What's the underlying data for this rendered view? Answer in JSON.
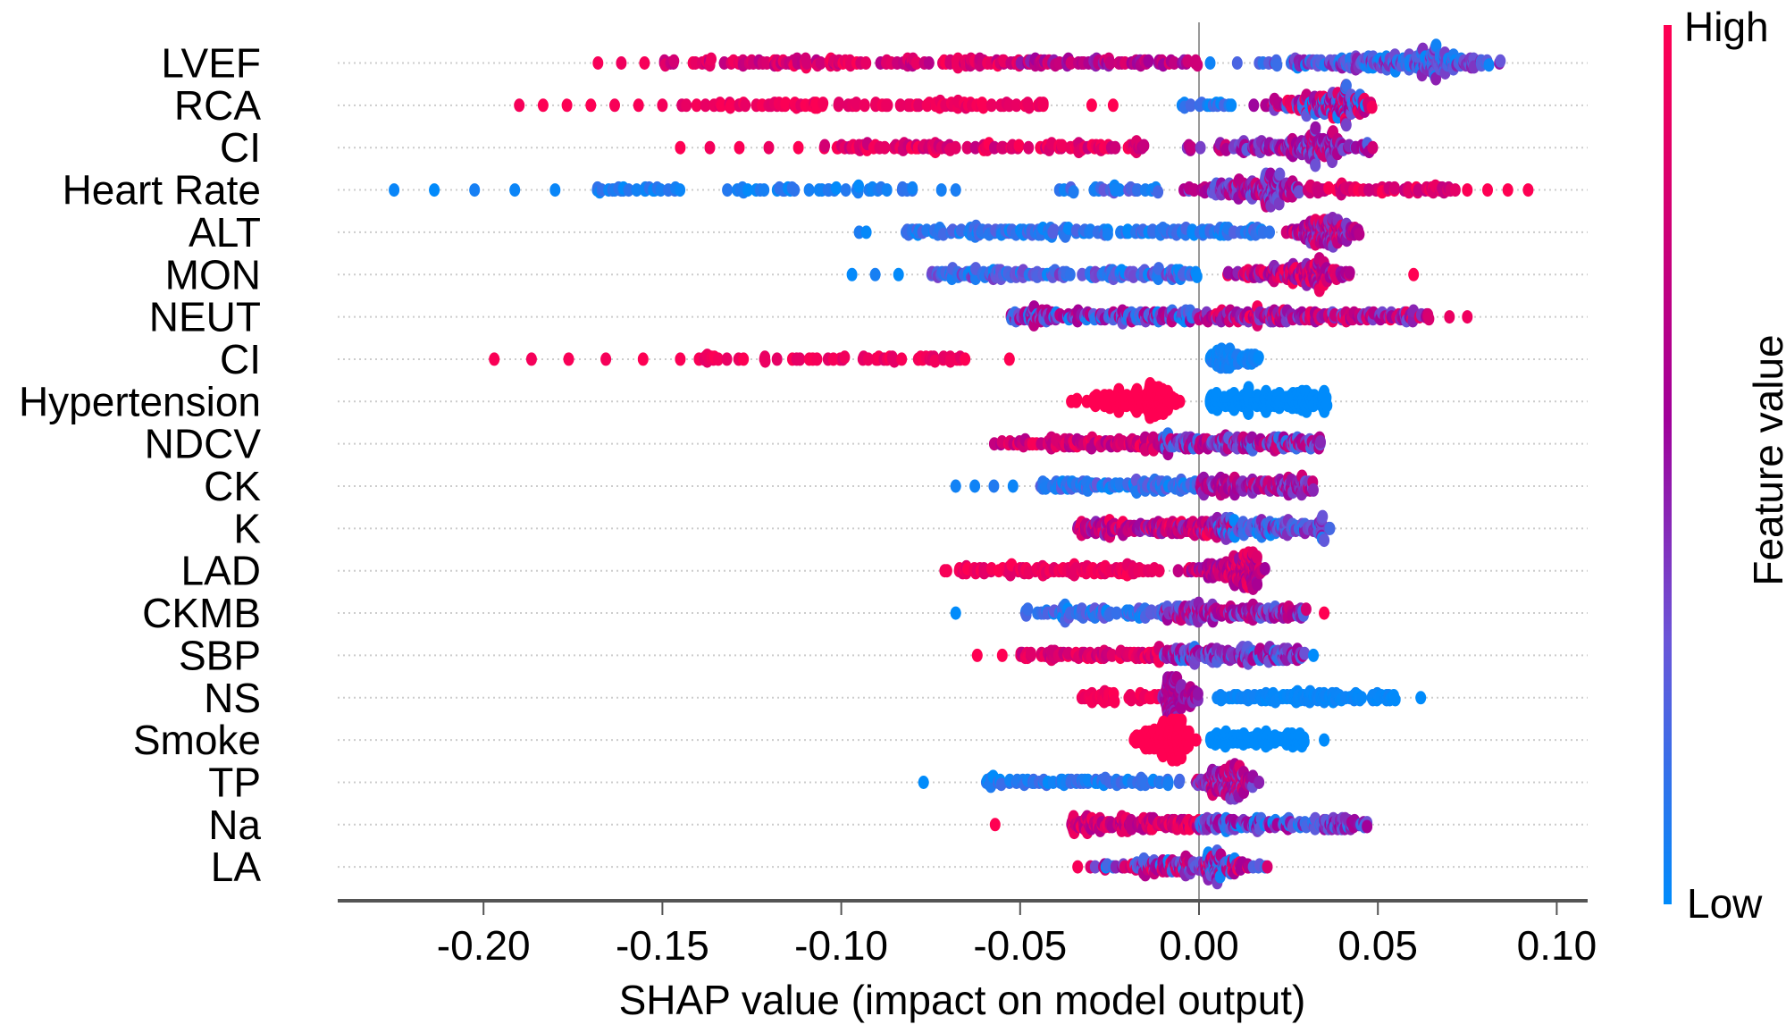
{
  "chart_data": {
    "type": "scatter",
    "subtype": "beeswarm",
    "xlabel": "SHAP value (impact on model output)",
    "xlim": [
      -0.24,
      0.107
    ],
    "xticks": [
      -0.2,
      -0.15,
      -0.1,
      -0.05,
      0.0,
      0.05,
      0.1
    ],
    "xtick_labels": [
      "-0.20",
      "-0.15",
      "-0.10",
      "-0.05",
      "0.00",
      "0.05",
      "0.10"
    ],
    "colorbar": {
      "label": "Feature value",
      "high_label": "High",
      "low_label": "Low",
      "low_color": "#008bfb",
      "mid_color": "#a0009a",
      "high_color": "#ff0052"
    },
    "grid": false,
    "features": [
      {
        "name": "LVEF",
        "segments": [
          {
            "x": [
              -0.168,
              -0.155
            ],
            "n": 3,
            "fv": [
              0.9,
              1
            ]
          },
          {
            "x": [
              -0.15,
              -0.05
            ],
            "n": 130,
            "fv": [
              0.65,
              1
            ]
          },
          {
            "x": [
              -0.05,
              0
            ],
            "n": 70,
            "fv": [
              0.45,
              0.85
            ]
          },
          {
            "x": [
              0,
              0.09
            ],
            "n": 240,
            "fv": [
              0,
              0.5
            ],
            "peak": 0.06
          }
        ]
      },
      {
        "name": "RCA",
        "segments": [
          {
            "x": [
              -0.19,
              -0.15
            ],
            "n": 7,
            "fv": [
              0.95,
              1
            ]
          },
          {
            "x": [
              -0.145,
              -0.043
            ],
            "n": 95,
            "fv": [
              0.85,
              1
            ]
          },
          {
            "x": [
              -0.03,
              -0.024
            ],
            "n": 2,
            "fv": [
              1,
              1
            ]
          },
          {
            "x": [
              -0.007,
              0.01
            ],
            "n": 15,
            "fv": [
              0,
              0.2
            ]
          },
          {
            "x": [
              0.01,
              0.053
            ],
            "n": 170,
            "fv": [
              0,
              1
            ],
            "peak": 0.038
          }
        ]
      },
      {
        "name": "CI",
        "segments": [
          {
            "x": [
              -0.145,
              -0.112
            ],
            "n": 5,
            "fv": [
              0.9,
              1
            ]
          },
          {
            "x": [
              -0.105,
              -0.015
            ],
            "n": 115,
            "fv": [
              0.7,
              1
            ]
          },
          {
            "x": [
              -0.015,
              0.053
            ],
            "n": 180,
            "fv": [
              0.2,
              0.8
            ],
            "peak": 0.03
          }
        ]
      },
      {
        "name": "Heart Rate",
        "segments": [
          {
            "x": [
              -0.225,
              -0.18
            ],
            "n": 5,
            "fv": [
              0,
              0.1
            ]
          },
          {
            "x": [
              -0.17,
              -0.145
            ],
            "n": 25,
            "fv": [
              0,
              0.15
            ]
          },
          {
            "x": [
              -0.132,
              -0.078
            ],
            "n": 40,
            "fv": [
              0,
              0.15
            ]
          },
          {
            "x": [
              -0.072,
              -0.068
            ],
            "n": 2,
            "fv": [
              0,
              0.1
            ]
          },
          {
            "x": [
              -0.042,
              -0.01
            ],
            "n": 25,
            "fv": [
              0,
              0.3
            ]
          },
          {
            "x": [
              -0.01,
              0.03
            ],
            "n": 160,
            "fv": [
              0.2,
              0.8
            ],
            "peak": 0.018
          },
          {
            "x": [
              0.03,
              0.072
            ],
            "n": 60,
            "fv": [
              0.7,
              1
            ]
          },
          {
            "x": [
              0.075,
              0.092
            ],
            "n": 4,
            "fv": [
              0.95,
              1
            ]
          }
        ]
      },
      {
        "name": "ALT",
        "segments": [
          {
            "x": [
              -0.095,
              -0.093
            ],
            "n": 2,
            "fv": [
              0,
              0.1
            ]
          },
          {
            "x": [
              -0.082,
              0.02
            ],
            "n": 170,
            "fv": [
              0,
              0.25
            ]
          },
          {
            "x": [
              0.02,
              0.05
            ],
            "n": 130,
            "fv": [
              0.3,
              0.9
            ],
            "peak": 0.035
          }
        ]
      },
      {
        "name": "MON",
        "segments": [
          {
            "x": [
              -0.097,
              -0.084
            ],
            "n": 3,
            "fv": [
              0,
              0.1
            ]
          },
          {
            "x": [
              -0.075,
              0
            ],
            "n": 150,
            "fv": [
              0,
              0.4
            ]
          },
          {
            "x": [
              0,
              0.045
            ],
            "n": 150,
            "fv": [
              0.4,
              1
            ],
            "peak": 0.03
          },
          {
            "x": [
              0.06,
              0.06
            ],
            "n": 1,
            "fv": [
              1,
              1
            ]
          }
        ]
      },
      {
        "name": "NEUT",
        "segments": [
          {
            "x": [
              -0.053,
              0
            ],
            "n": 160,
            "fv": [
              0,
              0.7
            ]
          },
          {
            "x": [
              0,
              0.065
            ],
            "n": 180,
            "fv": [
              0.3,
              1
            ]
          },
          {
            "x": [
              0.07,
              0.075
            ],
            "n": 2,
            "fv": [
              0.9,
              1
            ]
          }
        ]
      },
      {
        "name": "CI",
        "segments": [
          {
            "x": [
              -0.197,
              -0.145
            ],
            "n": 6,
            "fv": [
              0.95,
              1
            ]
          },
          {
            "x": [
              -0.14,
              -0.062
            ],
            "n": 60,
            "fv": [
              0.85,
              1
            ]
          },
          {
            "x": [
              -0.053,
              -0.053
            ],
            "n": 1,
            "fv": [
              1,
              1
            ]
          },
          {
            "x": [
              0.003,
              0.017
            ],
            "n": 70,
            "fv": [
              0,
              0.1
            ]
          }
        ]
      },
      {
        "name": "Hypertension",
        "segments": [
          {
            "x": [
              -0.042,
              -0.003
            ],
            "n": 160,
            "fv": [
              1,
              1
            ],
            "peak": -0.015
          },
          {
            "x": [
              0.003,
              0.036
            ],
            "n": 180,
            "fv": [
              0,
              0
            ]
          }
        ]
      },
      {
        "name": "NDCV",
        "segments": [
          {
            "x": [
              -0.058,
              -0.01
            ],
            "n": 100,
            "fv": [
              0.6,
              1
            ]
          },
          {
            "x": [
              -0.01,
              0.034
            ],
            "n": 170,
            "fv": [
              0.1,
              0.8
            ]
          }
        ]
      },
      {
        "name": "CK",
        "segments": [
          {
            "x": [
              -0.068,
              -0.052
            ],
            "n": 4,
            "fv": [
              0,
              0.1
            ]
          },
          {
            "x": [
              -0.045,
              0
            ],
            "n": 110,
            "fv": [
              0,
              0.3
            ]
          },
          {
            "x": [
              0,
              0.032
            ],
            "n": 140,
            "fv": [
              0.3,
              0.8
            ]
          }
        ]
      },
      {
        "name": "K",
        "segments": [
          {
            "x": [
              -0.034,
              0.01
            ],
            "n": 170,
            "fv": [
              0.4,
              1
            ]
          },
          {
            "x": [
              0.005,
              0.037
            ],
            "n": 130,
            "fv": [
              0,
              0.5
            ]
          }
        ]
      },
      {
        "name": "LAD",
        "segments": [
          {
            "x": [
              -0.072,
              -0.01
            ],
            "n": 110,
            "fv": [
              0.85,
              1
            ]
          },
          {
            "x": [
              -0.01,
              0.02
            ],
            "n": 150,
            "fv": [
              0.5,
              1
            ],
            "peak": 0.012
          }
        ]
      },
      {
        "name": "CKMB",
        "segments": [
          {
            "x": [
              -0.068,
              -0.068
            ],
            "n": 1,
            "fv": [
              0,
              0
            ]
          },
          {
            "x": [
              -0.05,
              -0.01
            ],
            "n": 80,
            "fv": [
              0,
              0.3
            ]
          },
          {
            "x": [
              -0.01,
              0.03
            ],
            "n": 160,
            "fv": [
              0.2,
              0.8
            ]
          },
          {
            "x": [
              0.035,
              0.035
            ],
            "n": 1,
            "fv": [
              1,
              1
            ]
          }
        ]
      },
      {
        "name": "SBP",
        "segments": [
          {
            "x": [
              -0.062,
              -0.055
            ],
            "n": 2,
            "fv": [
              1,
              1
            ]
          },
          {
            "x": [
              -0.05,
              -0.01
            ],
            "n": 80,
            "fv": [
              0.7,
              1
            ]
          },
          {
            "x": [
              -0.01,
              0.03
            ],
            "n": 160,
            "fv": [
              0.1,
              0.7
            ]
          },
          {
            "x": [
              0.032,
              0.032
            ],
            "n": 1,
            "fv": [
              0,
              0
            ]
          }
        ]
      },
      {
        "name": "NS",
        "segments": [
          {
            "x": [
              -0.033,
              -0.01
            ],
            "n": 40,
            "fv": [
              0.9,
              1
            ]
          },
          {
            "x": [
              -0.012,
              0.003
            ],
            "n": 110,
            "fv": [
              0.4,
              0.7
            ],
            "peak": -0.007
          },
          {
            "x": [
              0.005,
              0.055
            ],
            "n": 110,
            "fv": [
              0,
              0.05
            ]
          },
          {
            "x": [
              0.062,
              0.062
            ],
            "n": 1,
            "fv": [
              0,
              0
            ]
          }
        ]
      },
      {
        "name": "Smoke",
        "segments": [
          {
            "x": [
              -0.023,
              0
            ],
            "n": 160,
            "fv": [
              1,
              1
            ],
            "peak": -0.008
          },
          {
            "x": [
              0.003,
              0.03
            ],
            "n": 100,
            "fv": [
              0,
              0
            ]
          },
          {
            "x": [
              0.035,
              0.035
            ],
            "n": 1,
            "fv": [
              0,
              0
            ]
          }
        ]
      },
      {
        "name": "TP",
        "segments": [
          {
            "x": [
              -0.077,
              -0.077
            ],
            "n": 1,
            "fv": [
              0,
              0
            ]
          },
          {
            "x": [
              -0.06,
              -0.005
            ],
            "n": 80,
            "fv": [
              0,
              0.2
            ]
          },
          {
            "x": [
              -0.005,
              0.018
            ],
            "n": 130,
            "fv": [
              0.3,
              0.9
            ],
            "peak": 0.008
          }
        ]
      },
      {
        "name": "Na",
        "segments": [
          {
            "x": [
              -0.057,
              -0.057
            ],
            "n": 1,
            "fv": [
              1,
              1
            ]
          },
          {
            "x": [
              -0.036,
              0
            ],
            "n": 130,
            "fv": [
              0.6,
              1
            ]
          },
          {
            "x": [
              0,
              0.047
            ],
            "n": 150,
            "fv": [
              0,
              0.6
            ]
          }
        ]
      },
      {
        "name": "LA",
        "segments": [
          {
            "x": [
              -0.04,
              0.025
            ],
            "n": 190,
            "fv": [
              0,
              1
            ],
            "peak": 0
          }
        ]
      }
    ]
  }
}
